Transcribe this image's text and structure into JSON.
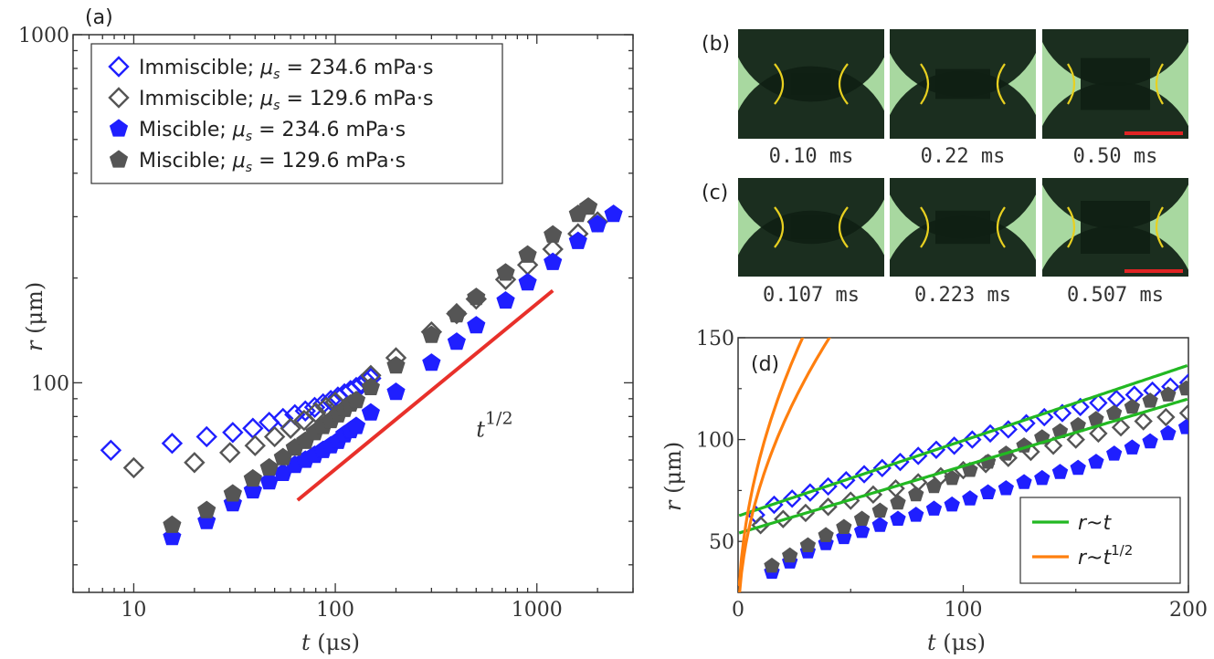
{
  "panel_labels": {
    "a": "(a)",
    "b": "(b)",
    "c": "(c)",
    "d": "(d)"
  },
  "colors": {
    "blue": "#1f1fff",
    "gray": "#555555",
    "slope_line": "#e8302a",
    "green": "#22b822",
    "orange": "#ff7f0e",
    "photo_bg": "#a8d8a0",
    "drop": "#0f1f14",
    "neck_outline": "#e8d020",
    "scale_bar": "#e02424"
  },
  "chart_data": [
    {
      "id": "a",
      "type": "scatter",
      "xscale": "log",
      "yscale": "log",
      "xlim": [
        5,
        3000
      ],
      "ylim": [
        25,
        1000
      ],
      "xlabel": {
        "symbol": "t",
        "unit": " (μs)"
      },
      "ylabel": {
        "symbol": "r",
        "unit": " (μm)"
      },
      "xticks": [
        10,
        100,
        1000
      ],
      "xtick_labels": [
        "10",
        "100",
        "1000"
      ],
      "yticks": [
        100,
        1000
      ],
      "ytick_labels": [
        "100",
        "1000"
      ],
      "legend_location": "top-left",
      "annotation": {
        "base": "t",
        "exponent": "1/2",
        "x": 500,
        "y": 70
      },
      "reference_line": {
        "label": "t^1/2",
        "x": [
          65,
          1200
        ],
        "y": [
          46,
          184
        ]
      },
      "series": [
        {
          "name": "Immiscible; μs = 234.6 mPa·s",
          "prefix": "Immiscible; ",
          "symbol": "μ",
          "subscript": "s",
          "suffix": " = 234.6 mPa·s",
          "marker": "diamond-open",
          "color": "blue",
          "x": [
            7.7,
            15.5,
            23,
            31,
            39,
            47,
            55,
            63,
            71,
            79,
            87,
            95,
            103,
            111,
            119,
            127,
            135,
            143,
            150
          ],
          "y": [
            64,
            67,
            70,
            72,
            74,
            77,
            79,
            81,
            83,
            85,
            87,
            89,
            91,
            93,
            95,
            97,
            99,
            101,
            103
          ]
        },
        {
          "name": "Immiscible; μs = 129.6 mPa·s",
          "prefix": "Immiscible; ",
          "symbol": "μ",
          "subscript": "s",
          "suffix": " = 129.6 mPa·s",
          "marker": "diamond-open",
          "color": "gray",
          "x": [
            10,
            20,
            30,
            40,
            50,
            60,
            70,
            80,
            90,
            100,
            150,
            200,
            300,
            400,
            500,
            700,
            900,
            1200,
            1600,
            2000
          ],
          "y": [
            57,
            59,
            63,
            66,
            70,
            74,
            78,
            82,
            85,
            88,
            105,
            118,
            140,
            158,
            174,
            198,
            218,
            242,
            268,
            290
          ]
        },
        {
          "name": "Miscible; μs = 234.6 mPa·s",
          "prefix": "Miscible; ",
          "symbol": "μ",
          "subscript": "s",
          "suffix": " = 234.6 mPa·s",
          "marker": "pentagon-filled",
          "color": "blue",
          "x": [
            15.5,
            23,
            31,
            39,
            47,
            55,
            63,
            71,
            79,
            87,
            95,
            103,
            111,
            119,
            127,
            150,
            200,
            300,
            400,
            500,
            700,
            900,
            1200,
            1600,
            2000,
            2400
          ],
          "y": [
            36,
            40,
            45,
            49,
            52,
            55,
            58,
            60,
            62,
            64,
            66,
            68,
            71,
            73,
            75,
            82,
            94,
            114,
            131,
            146,
            172,
            194,
            222,
            255,
            285,
            305
          ]
        },
        {
          "name": "Miscible; μs = 129.6 mPa·s",
          "prefix": "Miscible; ",
          "symbol": "μ",
          "subscript": "s",
          "suffix": " = 129.6 mPa·s",
          "marker": "pentagon-filled",
          "color": "gray",
          "x": [
            15.5,
            23,
            31,
            39,
            47,
            55,
            63,
            71,
            79,
            87,
            95,
            103,
            111,
            119,
            127,
            150,
            200,
            300,
            400,
            500,
            700,
            900,
            1200,
            1600,
            1800
          ],
          "y": [
            39,
            43,
            48,
            53,
            57,
            61,
            65,
            68,
            72,
            75,
            78,
            81,
            84,
            87,
            89,
            97,
            112,
            137,
            157,
            176,
            207,
            233,
            266,
            305,
            320
          ]
        }
      ]
    },
    {
      "id": "d",
      "type": "scatter",
      "xscale": "linear",
      "yscale": "linear",
      "xlim": [
        0,
        200
      ],
      "ylim": [
        25,
        150
      ],
      "xlabel": {
        "symbol": "t",
        "unit": " (μs)"
      },
      "ylabel": {
        "symbol": "r",
        "unit": " (μm)"
      },
      "xticks": [
        0,
        100,
        200
      ],
      "xtick_labels": [
        "0",
        "100",
        "200"
      ],
      "yticks": [
        50,
        100,
        150
      ],
      "ytick_labels": [
        "50",
        "100",
        "150"
      ],
      "legend_location": "bottom-right",
      "fit_legend": [
        {
          "label_base": "r~t",
          "label_exp": "",
          "color": "green"
        },
        {
          "label_base": "r~t",
          "label_exp": "1/2",
          "color": "orange"
        }
      ],
      "fits": [
        {
          "form": "linear",
          "color": "green",
          "a": 62.5,
          "b": 0.37
        },
        {
          "form": "linear",
          "color": "green",
          "a": 54.0,
          "b": 0.33
        },
        {
          "form": "sqrt",
          "color": "orange",
          "a": 9.5,
          "b": 8.3
        },
        {
          "form": "sqrt",
          "color": "orange",
          "a": 7.0,
          "b": 7.1
        }
      ],
      "series": [
        {
          "name": "Immiscible; μs = 234.6 mPa·s",
          "marker": "diamond-open",
          "color": "blue",
          "x": [
            8,
            16,
            24,
            32,
            40,
            48,
            56,
            64,
            72,
            80,
            88,
            96,
            104,
            112,
            120,
            128,
            136,
            144,
            152,
            160,
            168,
            176,
            184,
            192,
            200
          ],
          "y": [
            63,
            68,
            71,
            74,
            77,
            80,
            83,
            86,
            89,
            92,
            95,
            97,
            100,
            103,
            105,
            108,
            111,
            113,
            116,
            118,
            120,
            122,
            124,
            126,
            128
          ]
        },
        {
          "name": "Immiscible; μs = 129.6 mPa·s",
          "marker": "diamond-open",
          "color": "gray",
          "x": [
            10,
            20,
            30,
            40,
            50,
            60,
            70,
            80,
            90,
            100,
            110,
            120,
            130,
            140,
            150,
            160,
            170,
            180,
            190,
            200
          ],
          "y": [
            58,
            61,
            64,
            67,
            70,
            73,
            76,
            79,
            82,
            85,
            88,
            91,
            94,
            97,
            100,
            103,
            106,
            109,
            111,
            113
          ]
        },
        {
          "name": "Miscible; μs = 234.6 mPa·s",
          "marker": "pentagon-filled",
          "color": "blue",
          "x": [
            15,
            23,
            31,
            39,
            47,
            55,
            63,
            71,
            79,
            87,
            95,
            103,
            111,
            119,
            127,
            135,
            143,
            151,
            159,
            167,
            175,
            183,
            191,
            199
          ],
          "y": [
            35,
            40,
            45,
            49,
            52,
            55,
            58,
            61,
            63,
            66,
            68,
            71,
            74,
            76,
            79,
            81,
            84,
            86,
            89,
            93,
            96,
            99,
            103,
            106
          ]
        },
        {
          "name": "Miscible; μs = 129.6 mPa·s",
          "marker": "pentagon-filled",
          "color": "gray",
          "x": [
            15,
            23,
            31,
            39,
            47,
            55,
            63,
            71,
            79,
            87,
            95,
            103,
            111,
            119,
            127,
            135,
            143,
            151,
            159,
            167,
            175,
            183,
            191,
            199
          ],
          "y": [
            38,
            43,
            48,
            53,
            57,
            61,
            65,
            69,
            73,
            77,
            81,
            85,
            89,
            93,
            97,
            101,
            104,
            107,
            110,
            113,
            116,
            119,
            122,
            125
          ]
        }
      ]
    }
  ],
  "photo_panels": [
    {
      "id": "b",
      "captions": [
        "0.10 ms",
        "0.22 ms",
        "0.50 ms"
      ],
      "scale_bar_on": 2
    },
    {
      "id": "c",
      "captions": [
        "0.107 ms",
        "0.223 ms",
        "0.507 ms"
      ],
      "scale_bar_on": 2
    }
  ]
}
